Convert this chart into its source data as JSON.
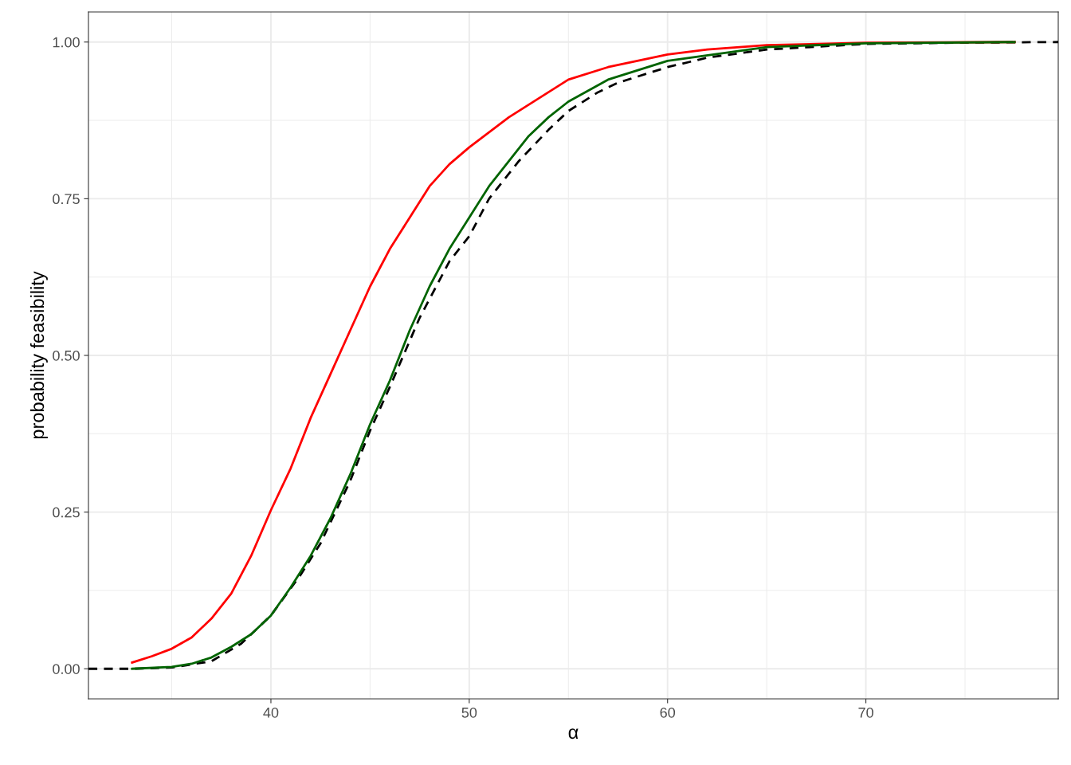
{
  "chart_data": {
    "type": "line",
    "xlabel": "α",
    "ylabel": "probability feasibility",
    "xlim": [
      30.8,
      79.7
    ],
    "ylim": [
      -0.048,
      1.048
    ],
    "xticks": [
      40,
      50,
      60,
      70
    ],
    "yticks": [
      {
        "value": 0,
        "label": "0.00"
      },
      {
        "value": 0.25,
        "label": "0.25"
      },
      {
        "value": 0.5,
        "label": "0.50"
      },
      {
        "value": 0.75,
        "label": "0.75"
      },
      {
        "value": 1,
        "label": "1.00"
      }
    ],
    "grid": true,
    "series": [
      {
        "color": "#000000",
        "line_style": "dashed",
        "x": [
          30.8,
          33,
          35,
          37,
          38.5,
          40,
          41.5,
          42.5,
          44,
          45,
          46,
          47.5,
          49,
          50,
          51,
          52.5,
          54,
          55,
          56.5,
          57.5,
          59,
          60,
          62,
          65,
          70,
          75,
          79.7
        ],
        "values": [
          0,
          0,
          0.002,
          0.012,
          0.04,
          0.085,
          0.15,
          0.2,
          0.3,
          0.38,
          0.45,
          0.56,
          0.65,
          0.69,
          0.75,
          0.81,
          0.86,
          0.89,
          0.92,
          0.935,
          0.95,
          0.96,
          0.975,
          0.988,
          0.997,
          0.999,
          1
        ]
      },
      {
        "color": "#ff0000",
        "line_style": "solid",
        "x": [
          33,
          34,
          35,
          36,
          37,
          38,
          39,
          40,
          41,
          42,
          43,
          44,
          45,
          46,
          47,
          48,
          49,
          50,
          52,
          54,
          55,
          57,
          60,
          62,
          65,
          70,
          77.5
        ],
        "values": [
          0.01,
          0.02,
          0.032,
          0.05,
          0.08,
          0.12,
          0.18,
          0.253,
          0.32,
          0.4,
          0.47,
          0.54,
          0.61,
          0.67,
          0.72,
          0.77,
          0.805,
          0.832,
          0.88,
          0.92,
          0.94,
          0.96,
          0.98,
          0.988,
          0.995,
          0.999,
          1
        ]
      },
      {
        "color": "#006400",
        "line_style": "solid",
        "x": [
          33,
          35,
          36,
          37,
          38,
          39,
          40,
          41,
          42,
          43,
          44,
          45,
          46,
          47,
          48,
          49,
          50,
          51,
          52,
          53,
          54,
          55,
          57,
          60,
          65,
          70,
          77.5
        ],
        "values": [
          0,
          0.003,
          0.008,
          0.018,
          0.035,
          0.055,
          0.085,
          0.13,
          0.18,
          0.24,
          0.31,
          0.39,
          0.46,
          0.54,
          0.61,
          0.67,
          0.72,
          0.77,
          0.81,
          0.85,
          0.88,
          0.905,
          0.94,
          0.97,
          0.992,
          0.998,
          1
        ]
      }
    ]
  }
}
